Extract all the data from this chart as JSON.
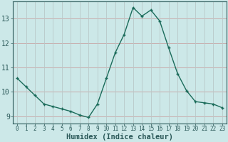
{
  "x": [
    0,
    1,
    2,
    3,
    4,
    5,
    6,
    7,
    8,
    9,
    10,
    11,
    12,
    13,
    14,
    15,
    16,
    17,
    18,
    19,
    20,
    21,
    22,
    23
  ],
  "y": [
    10.55,
    10.2,
    9.85,
    9.5,
    9.4,
    9.3,
    9.2,
    9.05,
    8.95,
    9.5,
    10.55,
    11.6,
    12.35,
    13.45,
    13.1,
    13.35,
    12.9,
    11.8,
    10.75,
    10.05,
    9.6,
    9.55,
    9.5,
    9.35
  ],
  "xlabel": "Humidex (Indice chaleur)",
  "ylim": [
    8.7,
    13.7
  ],
  "xlim": [
    -0.5,
    23.5
  ],
  "bg_color": "#cce8e8",
  "line_color": "#1a6b5a",
  "grid_color_h": "#c8a0a0",
  "grid_color_v": "#b8c8c8",
  "axis_color": "#2a5858",
  "yticks": [
    9,
    10,
    11,
    12,
    13
  ],
  "xticks": [
    0,
    1,
    2,
    3,
    4,
    5,
    6,
    7,
    8,
    9,
    10,
    11,
    12,
    13,
    14,
    15,
    16,
    17,
    18,
    19,
    20,
    21,
    22,
    23
  ],
  "xlabel_fontsize": 7.5,
  "ytick_fontsize": 7,
  "xtick_fontsize": 5.5
}
